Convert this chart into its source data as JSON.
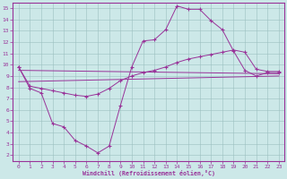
{
  "xlabel": "Windchill (Refroidissement éolien,°C)",
  "background_color": "#cce8e8",
  "line_color": "#993399",
  "xlim": [
    -0.5,
    23.5
  ],
  "ylim": [
    1.5,
    15.5
  ],
  "xticks": [
    0,
    1,
    2,
    3,
    4,
    5,
    6,
    7,
    8,
    9,
    10,
    11,
    12,
    13,
    14,
    15,
    16,
    17,
    18,
    19,
    20,
    21,
    22,
    23
  ],
  "yticks": [
    2,
    3,
    4,
    5,
    6,
    7,
    8,
    9,
    10,
    11,
    12,
    13,
    14,
    15
  ],
  "curve_wavy_x": [
    0,
    1,
    2,
    3,
    4,
    5,
    6,
    7,
    8,
    9,
    10,
    11,
    12,
    13,
    14,
    15,
    16,
    17,
    18,
    19,
    20,
    21,
    22,
    23
  ],
  "curve_wavy_y": [
    9.8,
    7.9,
    7.5,
    4.8,
    4.5,
    3.3,
    2.8,
    2.2,
    2.8,
    6.4,
    9.8,
    12.1,
    12.2,
    13.1,
    15.2,
    14.9,
    14.9,
    13.9,
    13.1,
    11.2,
    9.5,
    9.0,
    9.3,
    9.3
  ],
  "curve_line1_x": [
    0,
    23
  ],
  "curve_line1_y": [
    9.5,
    9.2
  ],
  "curve_line2_x": [
    0,
    23
  ],
  "curve_line2_y": [
    8.5,
    9.0
  ],
  "curve_reg_x": [
    0,
    1,
    2,
    3,
    4,
    5,
    6,
    7,
    8,
    9,
    10,
    11,
    12,
    13,
    14,
    15,
    16,
    17,
    18,
    19,
    20,
    21,
    22,
    23
  ],
  "curve_reg_y": [
    9.8,
    8.1,
    7.9,
    7.7,
    7.5,
    7.3,
    7.2,
    7.4,
    7.9,
    8.6,
    9.0,
    9.3,
    9.5,
    9.8,
    10.2,
    10.5,
    10.7,
    10.9,
    11.1,
    11.3,
    11.1,
    9.6,
    9.4,
    9.4
  ]
}
